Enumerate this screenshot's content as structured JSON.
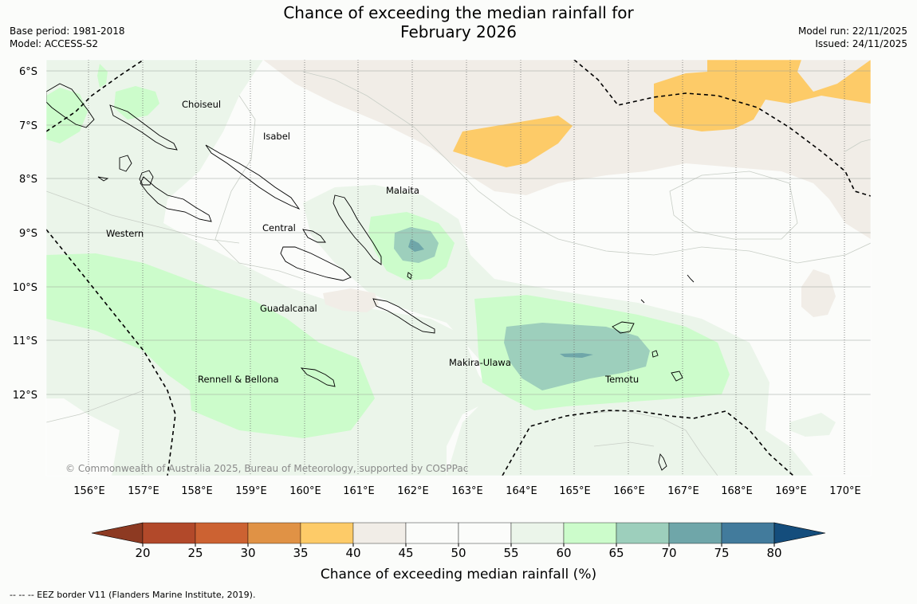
{
  "title": {
    "line1": "Chance of exceeding the median rainfall for",
    "line2": "February 2026"
  },
  "meta": {
    "base_period": "Base period: 1981-2018",
    "model": "Model: ACCESS-S2",
    "model_run": "Model run: 22/11/2025",
    "issued": "Issued: 24/11/2025"
  },
  "map": {
    "lat_labels": [
      "6°S",
      "7°S",
      "8°S",
      "9°S",
      "10°S",
      "11°S",
      "12°S"
    ],
    "lon_labels": [
      "156°E",
      "157°E",
      "158°E",
      "159°E",
      "160°E",
      "161°E",
      "162°E",
      "163°E",
      "164°E",
      "165°E",
      "166°E",
      "167°E",
      "168°E",
      "169°E",
      "170°E"
    ],
    "regions": [
      "Choiseul",
      "Isabel",
      "Malaita",
      "Western",
      "Central",
      "Guadalcanal",
      "Makira-Ulawa",
      "Rennell & Bellona",
      "Temotu"
    ],
    "copyright": "© Commonwealth of Australia 2025, Bureau of Meteorology, supported by COSPPac"
  },
  "colorbar": {
    "label": "Chance of exceeding median rainfall (%)",
    "ticks": [
      "20",
      "25",
      "30",
      "35",
      "40",
      "45",
      "50",
      "55",
      "60",
      "65",
      "70",
      "75",
      "80"
    ],
    "colors": [
      "#b2492a",
      "#cc6232",
      "#e09245",
      "#fdcb68",
      "#f1ede7",
      "#fbfcfa",
      "#fbfcfa",
      "#ebf5ea",
      "#ccfccb",
      "#9dcfbc",
      "#6fa6a9",
      "#427b9c"
    ],
    "below_color": "#8d3a22",
    "above_color": "#144d7c"
  },
  "eez_note": "--  --  -- EEZ border V11 (Flanders Marine Institute, 2019)."
}
